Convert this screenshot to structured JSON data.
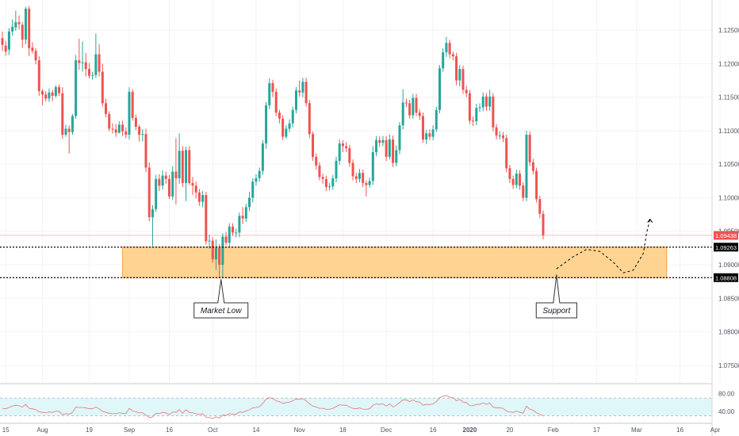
{
  "colors": {
    "up": "#26a69a",
    "down": "#ef5350",
    "zone_fill": "#ffcc80",
    "zone_stroke": "#f6a14a",
    "rsi_line": "#e57373",
    "rsi_band": "#e0f7fa",
    "last_price_bg": "#ef5350",
    "level_bg": "#000000",
    "grid": "#f2f3f5",
    "axis_text": "#50535e"
  },
  "chart_data": {
    "type": "candlestick",
    "instrument_hint": "EURUSD daily",
    "price_axis": {
      "range": [
        1.0725,
        1.1295
      ],
      "ticks": [
        "1.12500",
        "1.12000",
        "1.11500",
        "1.11000",
        "1.10500",
        "1.10000",
        "1.09500",
        "1.09000",
        "1.08500",
        "1.08000",
        "1.07500"
      ],
      "tick_values": [
        1.125,
        1.12,
        1.115,
        1.11,
        1.105,
        1.1,
        1.095,
        1.09,
        1.085,
        1.08,
        1.075
      ]
    },
    "price_labels": [
      {
        "text": "1.09438",
        "value": 1.09438,
        "style": "last"
      },
      {
        "text": "1.09263",
        "value": 1.09263,
        "style": "level"
      },
      {
        "text": "1.08808",
        "value": 1.08808,
        "style": "level"
      }
    ],
    "time_axis": {
      "labels": [
        "15",
        "Aug",
        "19",
        "Sep",
        "16",
        "Oct",
        "14",
        "Nov",
        "18",
        "Dec",
        "16",
        "2020",
        "20",
        "Feb",
        "17",
        "Mar",
        "16",
        "Apr"
      ],
      "label_index": [
        1,
        12,
        26,
        38,
        50,
        63,
        76,
        89,
        102,
        115,
        129,
        140,
        152,
        165,
        178,
        190,
        203,
        215
      ]
    },
    "candles": [
      [
        1.1238,
        1.1228,
        1.1248,
        1.1219
      ],
      [
        1.1227,
        1.1218,
        1.1234,
        1.1212
      ],
      [
        1.1221,
        1.1248,
        1.1253,
        1.1213
      ],
      [
        1.1248,
        1.1255,
        1.1266,
        1.1242
      ],
      [
        1.1254,
        1.1262,
        1.1279,
        1.1249
      ],
      [
        1.1262,
        1.1259,
        1.1272,
        1.1251
      ],
      [
        1.1258,
        1.1236,
        1.1262,
        1.1224
      ],
      [
        1.1236,
        1.1282,
        1.1285,
        1.1229
      ],
      [
        1.1282,
        1.1223,
        1.1286,
        1.1211
      ],
      [
        1.1224,
        1.1219,
        1.1232,
        1.1215
      ],
      [
        1.1219,
        1.1205,
        1.1223,
        1.1199
      ],
      [
        1.1205,
        1.1159,
        1.1211,
        1.1152
      ],
      [
        1.1159,
        1.1154,
        1.1162,
        1.1138
      ],
      [
        1.1154,
        1.1148,
        1.1159,
        1.1144
      ],
      [
        1.1148,
        1.1157,
        1.1163,
        1.1143
      ],
      [
        1.1157,
        1.1152,
        1.1161,
        1.1144
      ],
      [
        1.1152,
        1.1165,
        1.1168,
        1.1149
      ],
      [
        1.1165,
        1.1156,
        1.1169,
        1.1152
      ],
      [
        1.1156,
        1.1094,
        1.1165,
        1.1088
      ],
      [
        1.1094,
        1.1103,
        1.1109,
        1.1091
      ],
      [
        1.1103,
        1.1098,
        1.1108,
        1.1066
      ],
      [
        1.1098,
        1.1122,
        1.1125,
        1.1094
      ],
      [
        1.1122,
        1.1205,
        1.1213,
        1.1118
      ],
      [
        1.1205,
        1.1201,
        1.1237,
        1.1191
      ],
      [
        1.1201,
        1.1202,
        1.1233,
        1.1188
      ],
      [
        1.1202,
        1.1192,
        1.1216,
        1.1181
      ],
      [
        1.1192,
        1.1182,
        1.1201,
        1.1178
      ],
      [
        1.1182,
        1.1183,
        1.1188,
        1.1176
      ],
      [
        1.1183,
        1.1214,
        1.1245,
        1.1179
      ],
      [
        1.1214,
        1.1188,
        1.1229,
        1.1181
      ],
      [
        1.1188,
        1.1141,
        1.12,
        1.1136
      ],
      [
        1.1141,
        1.1125,
        1.1148,
        1.112
      ],
      [
        1.1125,
        1.1103,
        1.1129,
        1.1099
      ],
      [
        1.1103,
        1.1102,
        1.1111,
        1.1096
      ],
      [
        1.1102,
        1.1097,
        1.111,
        1.1091
      ],
      [
        1.1097,
        1.1109,
        1.1114,
        1.1096
      ],
      [
        1.1109,
        1.1099,
        1.1115,
        1.1092
      ],
      [
        1.1099,
        1.1094,
        1.1105,
        1.1089
      ],
      [
        1.1094,
        1.1158,
        1.1165,
        1.1087
      ],
      [
        1.1158,
        1.1119,
        1.1162,
        1.1115
      ],
      [
        1.1119,
        1.1106,
        1.1124,
        1.1101
      ],
      [
        1.1106,
        1.1094,
        1.1109,
        1.1084
      ],
      [
        1.1094,
        1.1095,
        1.1102,
        1.1084
      ],
      [
        1.1095,
        1.1045,
        1.1103,
        1.1038
      ],
      [
        1.1045,
        1.0971,
        1.1053,
        1.0965
      ],
      [
        1.0971,
        1.0983,
        1.0989,
        1.0928
      ],
      [
        1.0983,
        1.1028,
        1.1034,
        1.0979
      ],
      [
        1.1028,
        1.1018,
        1.1035,
        1.101
      ],
      [
        1.1018,
        1.1033,
        1.1041,
        1.1012
      ],
      [
        1.1033,
        1.1028,
        1.1039,
        1.1021
      ],
      [
        1.1028,
        1.1002,
        1.1034,
        1.0998
      ],
      [
        1.1002,
        1.1039,
        1.1047,
        1.0997
      ],
      [
        1.1039,
        1.1029,
        1.1089,
        1.099
      ],
      [
        1.1029,
        1.107,
        1.1096,
        1.1021
      ],
      [
        1.107,
        1.1022,
        1.1077,
        1.1016
      ],
      [
        1.1022,
        1.1071,
        1.1076,
        1.0995
      ],
      [
        1.1071,
        1.1022,
        1.1077,
        1.1019
      ],
      [
        1.1022,
        1.1018,
        1.1031,
        1.1004
      ],
      [
        1.1018,
        1.1008,
        1.1024,
        1.0999
      ],
      [
        1.1008,
        1.0994,
        1.1013,
        1.0988
      ],
      [
        1.0994,
        1.1004,
        1.101,
        1.0986
      ],
      [
        1.1004,
        1.0935,
        1.1009,
        1.093
      ],
      [
        1.0935,
        1.0936,
        1.0945,
        1.0924
      ],
      [
        1.0936,
        1.0908,
        1.0941,
        1.0903
      ],
      [
        1.0908,
        1.0925,
        1.0938,
        1.0892
      ],
      [
        1.0925,
        1.09,
        1.0931,
        1.088
      ],
      [
        1.09,
        1.0942,
        1.0947,
        1.088
      ],
      [
        1.0942,
        1.0933,
        1.0949,
        1.0929
      ],
      [
        1.0933,
        1.0957,
        1.0962,
        1.0927
      ],
      [
        1.0957,
        1.0948,
        1.0962,
        1.0943
      ],
      [
        1.0948,
        1.0948,
        1.0954,
        1.0941
      ],
      [
        1.0948,
        1.0973,
        1.0978,
        1.0941
      ],
      [
        1.0973,
        1.0969,
        1.0986,
        1.0961
      ],
      [
        1.0969,
        1.0986,
        1.0991,
        1.0964
      ],
      [
        1.0986,
        1.1,
        1.1009,
        1.098
      ],
      [
        1.1,
        1.1024,
        1.1029,
        1.0993
      ],
      [
        1.1024,
        1.1029,
        1.1035,
        1.1018
      ],
      [
        1.1029,
        1.104,
        1.1045,
        1.1024
      ],
      [
        1.104,
        1.1081,
        1.1086,
        1.1034
      ],
      [
        1.1081,
        1.1138,
        1.1143,
        1.1073
      ],
      [
        1.1138,
        1.1171,
        1.1178,
        1.1132
      ],
      [
        1.1171,
        1.1158,
        1.1176,
        1.115
      ],
      [
        1.1158,
        1.1127,
        1.1163,
        1.1122
      ],
      [
        1.1127,
        1.1118,
        1.1131,
        1.1111
      ],
      [
        1.1118,
        1.1091,
        1.1123,
        1.1086
      ],
      [
        1.1091,
        1.1103,
        1.1108,
        1.1088
      ],
      [
        1.1103,
        1.1111,
        1.1117,
        1.1098
      ],
      [
        1.1111,
        1.1131,
        1.1136,
        1.1105
      ],
      [
        1.1131,
        1.116,
        1.1165,
        1.1126
      ],
      [
        1.116,
        1.1157,
        1.1175,
        1.1151
      ],
      [
        1.1157,
        1.1173,
        1.1179,
        1.115
      ],
      [
        1.1173,
        1.1141,
        1.1179,
        1.1136
      ],
      [
        1.1141,
        1.1095,
        1.1146,
        1.1089
      ],
      [
        1.1095,
        1.1061,
        1.1099,
        1.1055
      ],
      [
        1.1061,
        1.1048,
        1.1066,
        1.1042
      ],
      [
        1.1048,
        1.1031,
        1.1053,
        1.1026
      ],
      [
        1.1031,
        1.1028,
        1.1036,
        1.1021
      ],
      [
        1.1028,
        1.1016,
        1.1033,
        1.101
      ],
      [
        1.1016,
        1.1017,
        1.1022,
        1.1011
      ],
      [
        1.1017,
        1.1029,
        1.1034,
        1.1012
      ],
      [
        1.1029,
        1.1055,
        1.1061,
        1.1023
      ],
      [
        1.1055,
        1.1081,
        1.1087,
        1.1049
      ],
      [
        1.1081,
        1.1077,
        1.1086,
        1.1068
      ],
      [
        1.1077,
        1.1074,
        1.1083,
        1.1068
      ],
      [
        1.1074,
        1.1052,
        1.1079,
        1.1046
      ],
      [
        1.1052,
        1.1032,
        1.1057,
        1.1026
      ],
      [
        1.1032,
        1.1028,
        1.1037,
        1.1022
      ],
      [
        1.1028,
        1.1037,
        1.1043,
        1.1023
      ],
      [
        1.1037,
        1.1022,
        1.1042,
        1.1016
      ],
      [
        1.1022,
        1.1019,
        1.1026,
        1.1002
      ],
      [
        1.1019,
        1.1025,
        1.103,
        1.1015
      ],
      [
        1.1025,
        1.1068,
        1.1077,
        1.1019
      ],
      [
        1.1068,
        1.1086,
        1.1092,
        1.1062
      ],
      [
        1.1086,
        1.1082,
        1.1092,
        1.1076
      ],
      [
        1.1082,
        1.1086,
        1.1092,
        1.1077
      ],
      [
        1.1086,
        1.1061,
        1.1092,
        1.1055
      ],
      [
        1.1061,
        1.1087,
        1.1094,
        1.1057
      ],
      [
        1.1087,
        1.1052,
        1.1093,
        1.1046
      ],
      [
        1.1052,
        1.1071,
        1.1078,
        1.1047
      ],
      [
        1.1071,
        1.1108,
        1.1113,
        1.1065
      ],
      [
        1.1108,
        1.1142,
        1.1162,
        1.1102
      ],
      [
        1.1142,
        1.1141,
        1.1148,
        1.1135
      ],
      [
        1.1141,
        1.1123,
        1.1146,
        1.1118
      ],
      [
        1.1123,
        1.1149,
        1.1155,
        1.1118
      ],
      [
        1.1149,
        1.1127,
        1.1155,
        1.1122
      ],
      [
        1.1127,
        1.1122,
        1.1132,
        1.1116
      ],
      [
        1.1122,
        1.1087,
        1.1127,
        1.1082
      ],
      [
        1.1087,
        1.1096,
        1.1101,
        1.108
      ],
      [
        1.1096,
        1.1091,
        1.1102,
        1.1086
      ],
      [
        1.1091,
        1.1102,
        1.1108,
        1.1086
      ],
      [
        1.1102,
        1.1131,
        1.1136,
        1.1098
      ],
      [
        1.1131,
        1.1193,
        1.1198,
        1.1126
      ],
      [
        1.1193,
        1.1217,
        1.1223,
        1.1188
      ],
      [
        1.1217,
        1.1231,
        1.124,
        1.121
      ],
      [
        1.1231,
        1.1214,
        1.1236,
        1.1208
      ],
      [
        1.1214,
        1.1211,
        1.1218,
        1.1205
      ],
      [
        1.1211,
        1.1175,
        1.1216,
        1.1168
      ],
      [
        1.1175,
        1.1192,
        1.1198,
        1.1166
      ],
      [
        1.1192,
        1.1161,
        1.1197,
        1.1155
      ],
      [
        1.1161,
        1.1156,
        1.1167,
        1.115
      ],
      [
        1.1156,
        1.1115,
        1.1161,
        1.111
      ],
      [
        1.1115,
        1.1114,
        1.1121,
        1.1107
      ],
      [
        1.1114,
        1.1134,
        1.114,
        1.1108
      ],
      [
        1.1134,
        1.1135,
        1.1141,
        1.1128
      ],
      [
        1.1135,
        1.1151,
        1.1157,
        1.1129
      ],
      [
        1.1151,
        1.1136,
        1.1156,
        1.113
      ],
      [
        1.1136,
        1.1151,
        1.1161,
        1.113
      ],
      [
        1.1151,
        1.1105,
        1.1156,
        1.1099
      ],
      [
        1.1105,
        1.1093,
        1.111,
        1.1087
      ],
      [
        1.1093,
        1.1093,
        1.1099,
        1.1087
      ],
      [
        1.1093,
        1.1089,
        1.1098,
        1.1083
      ],
      [
        1.1089,
        1.1044,
        1.1094,
        1.1038
      ],
      [
        1.1044,
        1.1028,
        1.1049,
        1.1022
      ],
      [
        1.1028,
        1.1019,
        1.1033,
        1.1013
      ],
      [
        1.1019,
        1.1036,
        1.1042,
        1.1014
      ],
      [
        1.1036,
        1.1018,
        1.1041,
        1.1012
      ],
      [
        1.1018,
        1.1,
        1.1023,
        1.0995
      ],
      [
        1.1,
        1.1094,
        1.11,
        1.0995
      ],
      [
        1.1094,
        1.1053,
        1.1099,
        1.1047
      ],
      [
        1.1053,
        1.104,
        1.1058,
        1.1035
      ],
      [
        1.104,
        1.0998,
        1.1045,
        1.0993
      ],
      [
        1.0998,
        1.0976,
        1.1003,
        1.097
      ],
      [
        1.0976,
        1.0944,
        1.0981,
        1.0938
      ]
    ],
    "zone": {
      "x0_index": 36,
      "x1_index": 199,
      "y_top": 1.09263,
      "y_bottom": 1.08808
    },
    "level_lines": [
      1.09263,
      1.08808
    ],
    "last_price_line": 1.09438,
    "annotations": [
      {
        "text": "Market Low",
        "anchor_index": 65.5,
        "anchor_value": 1.0878,
        "box_value": 1.0832
      },
      {
        "text": "Support",
        "anchor_index": 166,
        "anchor_value": 1.0885,
        "box_value": 1.0832
      }
    ],
    "projection_path": [
      [
        166,
        1.0894
      ],
      [
        171,
        1.0912
      ],
      [
        175,
        1.0923
      ],
      [
        179,
        1.092
      ],
      [
        183,
        1.0904
      ],
      [
        186,
        1.0888
      ],
      [
        189,
        1.0892
      ],
      [
        192,
        1.0917
      ],
      [
        193,
        1.0948
      ],
      [
        194,
        1.0968
      ]
    ],
    "rsi": {
      "ticks": [
        "80.00",
        "40.00"
      ],
      "tick_values": [
        80,
        40
      ],
      "band": [
        70,
        30
      ],
      "range": [
        17,
        97
      ],
      "values": [
        47,
        46,
        49,
        52,
        54,
        53,
        50,
        56,
        47,
        46,
        44,
        39,
        38,
        37,
        39,
        38,
        41,
        40,
        33,
        35,
        34,
        38,
        50,
        49,
        49,
        48,
        46,
        46,
        50,
        46,
        40,
        38,
        36,
        35,
        35,
        37,
        36,
        35,
        47,
        41,
        39,
        37,
        37,
        32,
        26,
        28,
        36,
        35,
        38,
        37,
        33,
        39,
        38,
        44,
        36,
        44,
        37,
        37,
        35,
        33,
        35,
        27,
        27,
        24,
        28,
        25,
        32,
        31,
        35,
        34,
        34,
        39,
        38,
        41,
        44,
        48,
        49,
        51,
        58,
        67,
        71,
        69,
        64,
        62,
        58,
        60,
        61,
        64,
        68,
        67,
        69,
        64,
        57,
        52,
        50,
        47,
        47,
        45,
        45,
        47,
        51,
        55,
        54,
        54,
        50,
        47,
        46,
        48,
        45,
        45,
        46,
        54,
        57,
        56,
        57,
        52,
        57,
        50,
        54,
        60,
        66,
        66,
        62,
        66,
        62,
        61,
        54,
        56,
        55,
        57,
        62,
        71,
        74,
        76,
        72,
        71,
        64,
        67,
        61,
        60,
        53,
        53,
        56,
        56,
        59,
        56,
        59,
        50,
        48,
        48,
        47,
        41,
        39,
        38,
        41,
        38,
        36,
        52,
        45,
        43,
        37,
        34,
        30
      ]
    }
  }
}
